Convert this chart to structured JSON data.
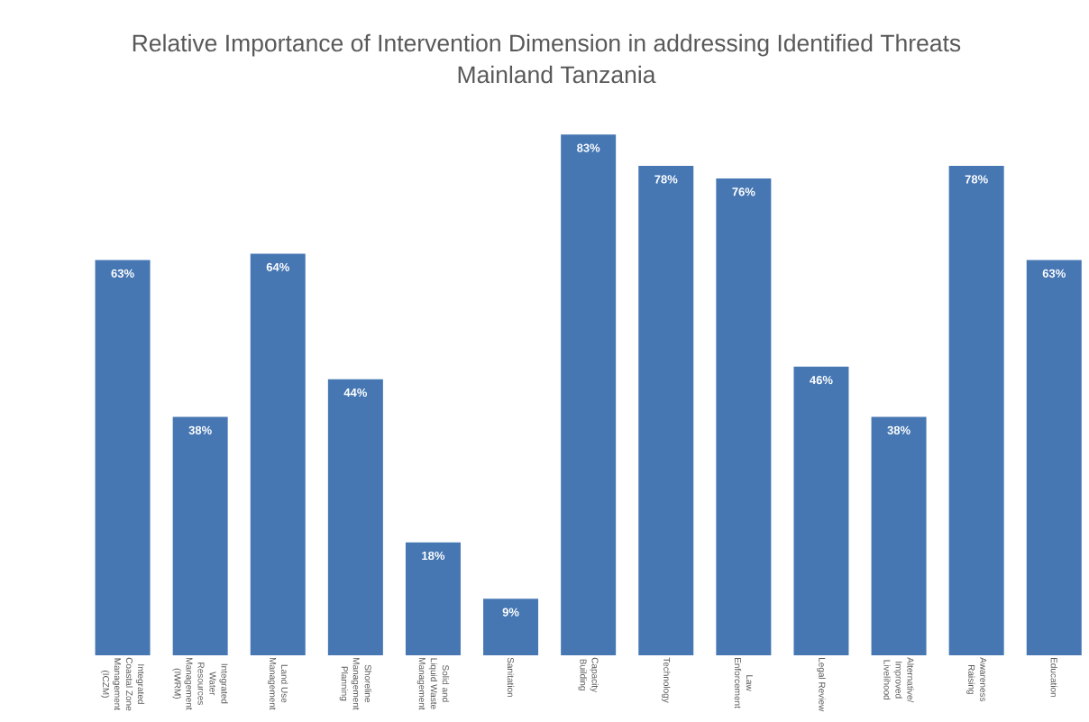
{
  "chart_data": {
    "type": "bar",
    "title": "Relative Importance of Intervention Dimension in addressing Identified Threats",
    "subtitle": "Mainland Tanzania",
    "categories": [
      "Integrated Coastal Zone Management (ICZM)",
      "Integrated Water Resources Management (IWRM)",
      "Land Use Management",
      "Shoreline Management Planning",
      "Solid and Liquid Waste Management",
      "Sanitation",
      "Capacity Building",
      "Technology",
      "Law Enforcement",
      "Legal Review",
      "Alternative/ Improved Livelihood",
      "Awareness Raising",
      "Education"
    ],
    "values": [
      63,
      38,
      64,
      44,
      18,
      9,
      83,
      78,
      76,
      46,
      38,
      78,
      63
    ],
    "value_labels": [
      "63%",
      "38%",
      "64%",
      "44%",
      "18%",
      "9%",
      "83%",
      "78%",
      "76%",
      "46%",
      "38%",
      "78%",
      "63%"
    ],
    "color": "#4677b3"
  }
}
